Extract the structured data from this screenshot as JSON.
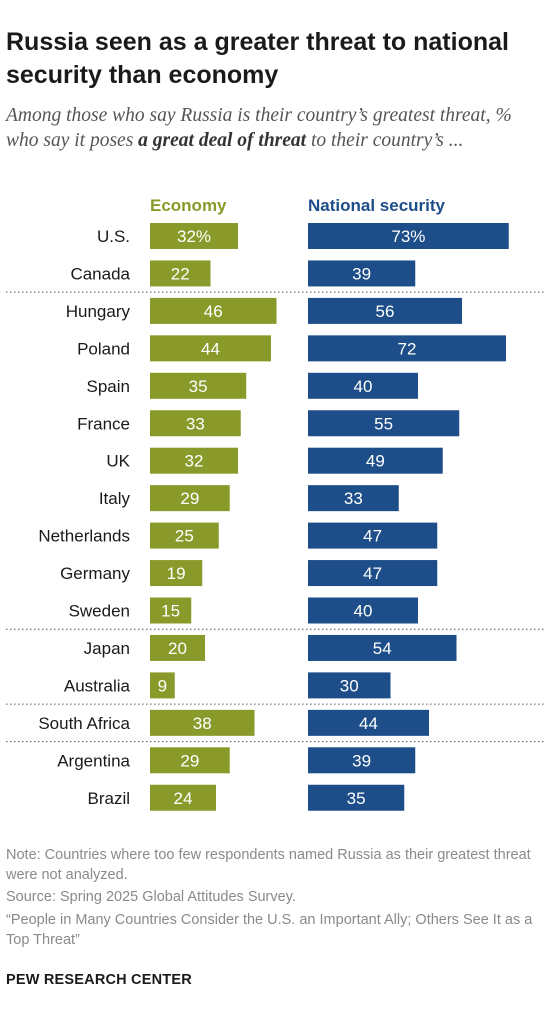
{
  "title": "Russia seen as a greater threat to national security than economy",
  "subtitle_pre": "Among those who say Russia is their country’s greatest threat, % who say it poses ",
  "subtitle_bold": "a great deal of threat",
  "subtitle_post": " to their country’s ...",
  "note": "Note: Countries where too few respondents named Russia as their greatest threat were not analyzed.",
  "source": "Source: Spring 2025 Global Attitudes Survey.",
  "report": "“People in Many Countries Consider the U.S. an Important Ally; Others See It as a Top Threat”",
  "brand": "PEW RESEARCH CENTER",
  "colors": {
    "economy": "#8a9a2a",
    "national_security": "#1d4e89",
    "label_on_bar": "#ffffff",
    "divider": "#555555"
  },
  "chart_data": {
    "type": "bar",
    "orientation": "horizontal",
    "categories": [
      "U.S.",
      "Canada",
      "Hungary",
      "Poland",
      "Spain",
      "France",
      "UK",
      "Italy",
      "Netherlands",
      "Germany",
      "Sweden",
      "Japan",
      "Australia",
      "South Africa",
      "Argentina",
      "Brazil"
    ],
    "series": [
      {
        "name": "Economy",
        "values": [
          32,
          22,
          46,
          44,
          35,
          33,
          32,
          29,
          25,
          19,
          15,
          20,
          9,
          38,
          29,
          24
        ],
        "labels": [
          "32%",
          "22",
          "46",
          "44",
          "35",
          "33",
          "32",
          "29",
          "25",
          "19",
          "15",
          "20",
          "9",
          "38",
          "29",
          "24"
        ]
      },
      {
        "name": "National security",
        "values": [
          73,
          39,
          56,
          72,
          40,
          55,
          49,
          33,
          47,
          47,
          40,
          54,
          30,
          44,
          39,
          35
        ],
        "labels": [
          "73%",
          "39",
          "56",
          "72",
          "40",
          "55",
          "49",
          "33",
          "47",
          "47",
          "40",
          "54",
          "30",
          "44",
          "39",
          "35"
        ]
      }
    ],
    "group_dividers_after": [
      "Canada",
      "Sweden",
      "Australia",
      "South Africa"
    ],
    "xlim": [
      0,
      100
    ]
  }
}
